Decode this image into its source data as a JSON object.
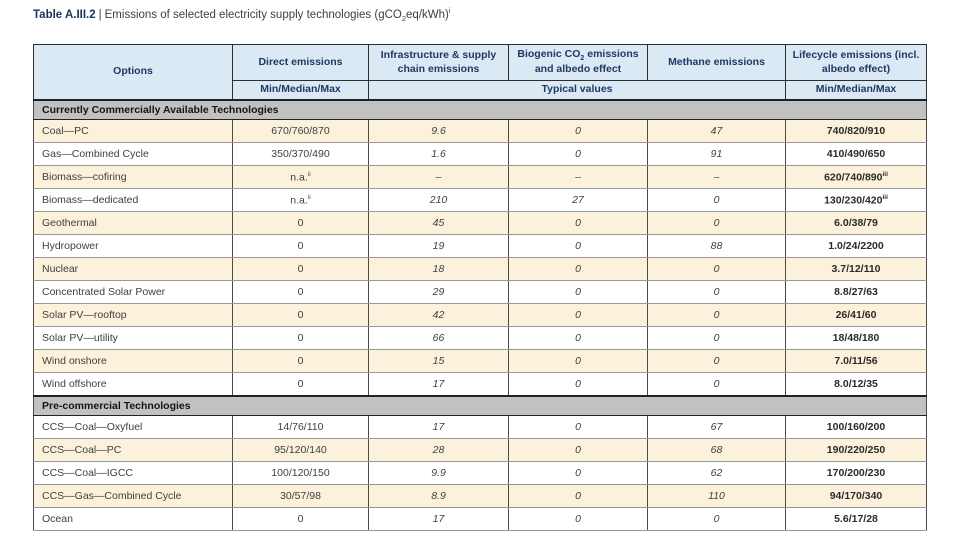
{
  "title": {
    "label": "Table A.III.2",
    "separator": "|",
    "text_pre": "Emissions of selected electricity supply technologies (gCO",
    "text_sub": "2",
    "text_post": "eq/kWh)",
    "text_sup": "i"
  },
  "header": {
    "options": "Options",
    "direct": "Direct emissions",
    "infrastructure": "Infrastructure & supply chain emissions",
    "biogenic_pre": "Biogenic CO",
    "biogenic_sub": "2",
    "biogenic_post": " emissions and albedo effect",
    "methane": "Methane emissions",
    "lifecycle": "Lifecycle emissions (incl. albedo effect)",
    "min_median_max": "Min/Median/Max",
    "typical_values": "Typical values",
    "lifecycle_min_median_max": "Min/Median/Max"
  },
  "colors": {
    "header_bg": "#dbe9f4",
    "header_text": "#1f3864",
    "section_bg": "#c1c1c1",
    "row_beige": "#fcf1da",
    "row_white": "#ffffff",
    "title_accent": "#17365d"
  },
  "sections": [
    {
      "label": "Currently Commercially Available Technologies",
      "rows": [
        {
          "option": "Coal—PC",
          "direct": "670/760/870",
          "infra": "9.6",
          "biogenic": "0",
          "methane": "47",
          "lifecycle": "740/820/910"
        },
        {
          "option": "Gas—Combined Cycle",
          "direct": "350/370/490",
          "infra": "1.6",
          "biogenic": "0",
          "methane": "91",
          "lifecycle": "410/490/650"
        },
        {
          "option": "Biomass—cofiring",
          "direct": "n.a.",
          "direct_sup": "ii",
          "infra": "–",
          "biogenic": "–",
          "methane": "–",
          "lifecycle": "620/740/890",
          "lifecycle_sup": "iii"
        },
        {
          "option": "Biomass—dedicated",
          "direct": "n.a.",
          "direct_sup": "ii",
          "infra": "210",
          "biogenic": "27",
          "methane": "0",
          "lifecycle": "130/230/420",
          "lifecycle_sup": "iii"
        },
        {
          "option": "Geothermal",
          "direct": "0",
          "infra": "45",
          "biogenic": "0",
          "methane": "0",
          "lifecycle": "6.0/38/79"
        },
        {
          "option": "Hydropower",
          "direct": "0",
          "infra": "19",
          "biogenic": "0",
          "methane": "88",
          "lifecycle": "1.0/24/2200"
        },
        {
          "option": "Nuclear",
          "direct": "0",
          "infra": "18",
          "biogenic": "0",
          "methane": "0",
          "lifecycle": "3.7/12/110"
        },
        {
          "option": "Concentrated Solar Power",
          "direct": "0",
          "infra": "29",
          "biogenic": "0",
          "methane": "0",
          "lifecycle": "8.8/27/63"
        },
        {
          "option": "Solar PV—rooftop",
          "direct": "0",
          "infra": "42",
          "biogenic": "0",
          "methane": "0",
          "lifecycle": "26/41/60"
        },
        {
          "option": "Solar PV—utility",
          "direct": "0",
          "infra": "66",
          "biogenic": "0",
          "methane": "0",
          "lifecycle": "18/48/180"
        },
        {
          "option": "Wind onshore",
          "direct": "0",
          "infra": "15",
          "biogenic": "0",
          "methane": "0",
          "lifecycle": "7.0/11/56"
        },
        {
          "option": "Wind offshore",
          "direct": "0",
          "infra": "17",
          "biogenic": "0",
          "methane": "0",
          "lifecycle": "8.0/12/35"
        }
      ]
    },
    {
      "label": "Pre-commercial Technologies",
      "rows": [
        {
          "option": "CCS—Coal—Oxyfuel",
          "direct": "14/76/110",
          "infra": "17",
          "biogenic": "0",
          "methane": "67",
          "lifecycle": "100/160/200"
        },
        {
          "option": "CCS—Coal—PC",
          "direct": "95/120/140",
          "infra": "28",
          "biogenic": "0",
          "methane": "68",
          "lifecycle": "190/220/250"
        },
        {
          "option": "CCS—Coal—IGCC",
          "direct": "100/120/150",
          "infra": "9.9",
          "biogenic": "0",
          "methane": "62",
          "lifecycle": "170/200/230"
        },
        {
          "option": "CCS—Gas—Combined Cycle",
          "direct": "30/57/98",
          "infra": "8.9",
          "biogenic": "0",
          "methane": "110",
          "lifecycle": "94/170/340"
        },
        {
          "option": "Ocean",
          "direct": "0",
          "infra": "17",
          "biogenic": "0",
          "methane": "0",
          "lifecycle": "5.6/17/28"
        }
      ]
    }
  ]
}
